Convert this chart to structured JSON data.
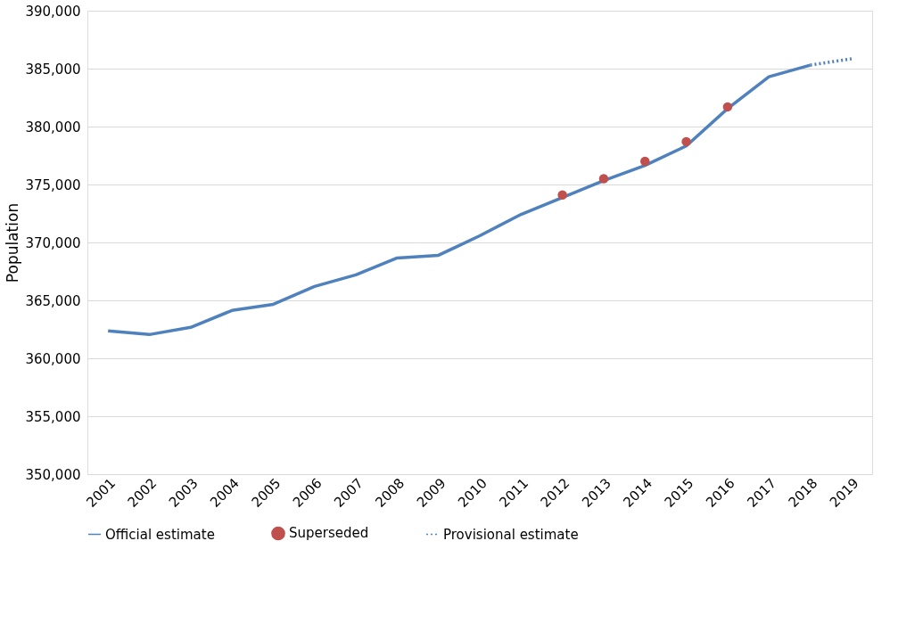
{
  "chart_data": {
    "type": "line",
    "ylabel": "Population",
    "categories": [
      "2001",
      "2002",
      "2003",
      "2004",
      "2005",
      "2006",
      "2007",
      "2008",
      "2009",
      "2010",
      "2011",
      "2012",
      "2013",
      "2014",
      "2015",
      "2016",
      "2017",
      "2018",
      "2019"
    ],
    "series": [
      {
        "name": "Official estimate",
        "color": "#4f81bd",
        "line_style": "solid",
        "values": [
          362360,
          362050,
          362670,
          364130,
          364660,
          366200,
          367200,
          368660,
          368890,
          370580,
          372420,
          373880,
          375340,
          376640,
          378330,
          381550,
          384300,
          385300,
          null
        ]
      },
      {
        "name": "Superseded",
        "type": "scatter",
        "color": "#c0504d",
        "marker": "circle",
        "values": [
          null,
          null,
          null,
          null,
          null,
          null,
          null,
          null,
          null,
          null,
          null,
          374100,
          375500,
          377000,
          378700,
          381700,
          null,
          null,
          null
        ]
      },
      {
        "name": "Provisional estimate",
        "color": "#4f81bd",
        "line_style": "dotted",
        "values": [
          null,
          null,
          null,
          null,
          null,
          null,
          null,
          null,
          null,
          null,
          null,
          null,
          null,
          null,
          null,
          null,
          null,
          385300,
          385850
        ]
      }
    ],
    "ylim": [
      350000,
      390000
    ],
    "yticks": [
      {
        "value": 350000,
        "label": "350,000"
      },
      {
        "value": 355000,
        "label": "355,000"
      },
      {
        "value": 360000,
        "label": "360,000"
      },
      {
        "value": 365000,
        "label": "365,000"
      },
      {
        "value": 370000,
        "label": "370,000"
      },
      {
        "value": 375000,
        "label": "375,000"
      },
      {
        "value": 380000,
        "label": "380,000"
      },
      {
        "value": 385000,
        "label": "385,000"
      },
      {
        "value": 390000,
        "label": "390,000"
      }
    ],
    "grid": "y",
    "legend": "bottom"
  }
}
